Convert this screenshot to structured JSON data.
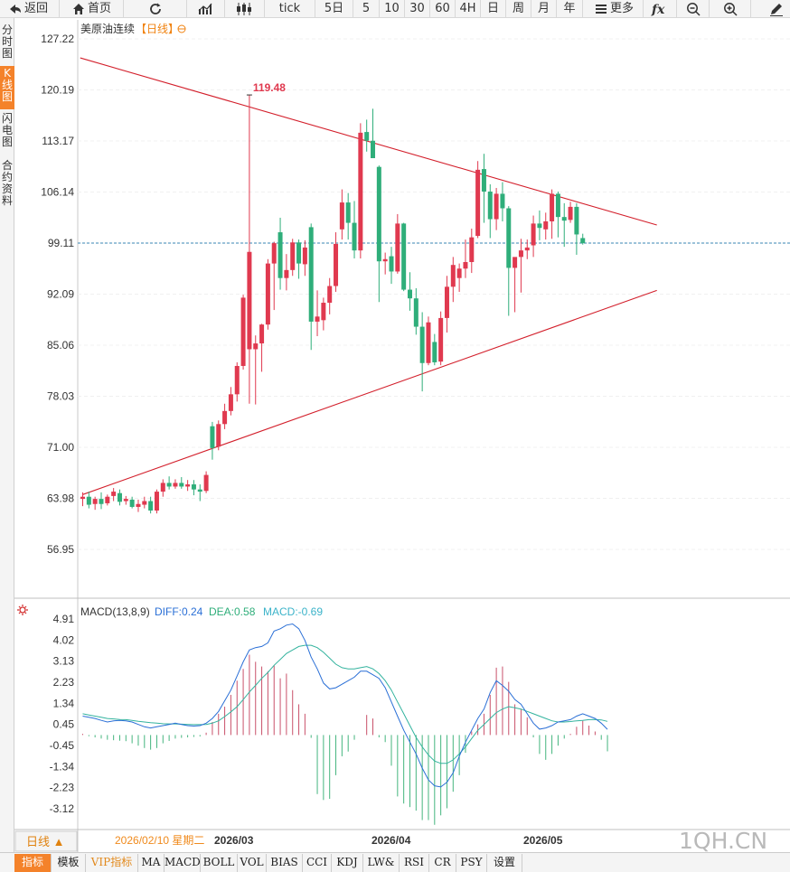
{
  "toolbar": {
    "back": "返回",
    "home": "首页",
    "tick": "tick",
    "periods": [
      "5日",
      "5",
      "10",
      "30",
      "60",
      "4H",
      "日",
      "周",
      "月",
      "年"
    ],
    "more": "更多"
  },
  "sidebar": {
    "tabs": [
      "分时图",
      "K线图",
      "闪电图",
      "合约资料"
    ],
    "active_index": 1
  },
  "header": {
    "instrument": "美原油连续",
    "period_tag": "【日线】",
    "peak_label": "119.48"
  },
  "price_axis": {
    "ticks": [
      "127.22",
      "120.19",
      "113.17",
      "106.14",
      "99.11",
      "92.09",
      "85.06",
      "78.03",
      "71.00",
      "63.98",
      "56.95"
    ]
  },
  "macd": {
    "title": "MACD(13,8,9)",
    "diff": "DIFF:0.24",
    "dea": "DEA:0.58",
    "macd": "MACD:-0.69",
    "ticks": [
      "4.91",
      "4.02",
      "3.13",
      "2.23",
      "1.34",
      "0.45",
      "-0.45",
      "-1.34",
      "-2.23",
      "-3.12"
    ]
  },
  "period_bar": {
    "period_button": "日线 ▲",
    "cursor_date": "2026/02/10 星期二",
    "months": [
      "2026/03",
      "2026/04",
      "2026/05"
    ]
  },
  "watermark": "1QH.CN",
  "indicator_tabs": [
    "指标",
    "模板",
    "VIP指标",
    "MA",
    "MACD",
    "BOLL",
    "VOL",
    "BIAS",
    "CCI",
    "KDJ",
    "LW&",
    "RSI",
    "CR",
    "PSY",
    "设置"
  ],
  "colors": {
    "up": "#e0394f",
    "down": "#2fae7a",
    "trendline": "#d31f2b",
    "diff_line": "#2a6fd6",
    "dea_line": "#33b39e",
    "accent": "#f4822a"
  },
  "chart_data": {
    "type": "candlestick",
    "ylim": [
      56.95,
      127.22
    ],
    "last_price_line": 99.11,
    "candles": [
      {
        "o": 63.9,
        "h": 64.8,
        "l": 62.9,
        "c": 64.2
      },
      {
        "o": 64.2,
        "h": 64.9,
        "l": 62.6,
        "c": 63.1
      },
      {
        "o": 63.2,
        "h": 64.2,
        "l": 62.4,
        "c": 63.9
      },
      {
        "o": 63.9,
        "h": 64.8,
        "l": 62.5,
        "c": 63.2
      },
      {
        "o": 63.3,
        "h": 64.5,
        "l": 63.0,
        "c": 64.2
      },
      {
        "o": 64.3,
        "h": 65.4,
        "l": 63.6,
        "c": 64.9
      },
      {
        "o": 64.7,
        "h": 65.2,
        "l": 63.0,
        "c": 63.5
      },
      {
        "o": 63.6,
        "h": 64.3,
        "l": 63.1,
        "c": 63.9
      },
      {
        "o": 63.8,
        "h": 64.2,
        "l": 62.6,
        "c": 62.8
      },
      {
        "o": 62.8,
        "h": 63.8,
        "l": 62.1,
        "c": 63.2
      },
      {
        "o": 63.1,
        "h": 64.2,
        "l": 62.6,
        "c": 63.6
      },
      {
        "o": 63.6,
        "h": 64.2,
        "l": 61.9,
        "c": 62.3
      },
      {
        "o": 62.3,
        "h": 65.2,
        "l": 61.9,
        "c": 64.9
      },
      {
        "o": 64.9,
        "h": 66.6,
        "l": 64.2,
        "c": 66.1
      },
      {
        "o": 66.1,
        "h": 67.0,
        "l": 65.2,
        "c": 65.6
      },
      {
        "o": 65.6,
        "h": 66.6,
        "l": 65.3,
        "c": 66.1
      },
      {
        "o": 66.1,
        "h": 66.9,
        "l": 65.3,
        "c": 65.6
      },
      {
        "o": 65.6,
        "h": 66.5,
        "l": 65.0,
        "c": 65.9
      },
      {
        "o": 65.9,
        "h": 66.5,
        "l": 64.4,
        "c": 65.2
      },
      {
        "o": 65.2,
        "h": 65.9,
        "l": 63.6,
        "c": 64.9
      },
      {
        "o": 65.0,
        "h": 67.7,
        "l": 64.7,
        "c": 67.2
      },
      {
        "o": 73.9,
        "h": 74.5,
        "l": 69.3,
        "c": 70.9
      },
      {
        "o": 71.1,
        "h": 74.7,
        "l": 70.6,
        "c": 74.2
      },
      {
        "o": 74.2,
        "h": 77.0,
        "l": 73.5,
        "c": 76.0
      },
      {
        "o": 76.0,
        "h": 79.3,
        "l": 75.4,
        "c": 78.3
      },
      {
        "o": 78.3,
        "h": 82.7,
        "l": 77.3,
        "c": 82.2
      },
      {
        "o": 82.2,
        "h": 92.0,
        "l": 81.7,
        "c": 91.6
      },
      {
        "o": 84.5,
        "h": 119.5,
        "l": 77.0,
        "c": 97.9
      },
      {
        "o": 84.5,
        "h": 86.4,
        "l": 76.9,
        "c": 85.3
      },
      {
        "o": 85.3,
        "h": 88.0,
        "l": 81.4,
        "c": 87.9
      },
      {
        "o": 87.9,
        "h": 96.9,
        "l": 87.2,
        "c": 96.3
      },
      {
        "o": 96.3,
        "h": 99.3,
        "l": 89.9,
        "c": 99.1
      },
      {
        "o": 100.6,
        "h": 102.6,
        "l": 92.7,
        "c": 94.3
      },
      {
        "o": 94.3,
        "h": 97.6,
        "l": 92.6,
        "c": 95.4
      },
      {
        "o": 95.4,
        "h": 99.7,
        "l": 94.6,
        "c": 99.2
      },
      {
        "o": 99.2,
        "h": 99.6,
        "l": 94.2,
        "c": 96.3
      },
      {
        "o": 96.2,
        "h": 99.5,
        "l": 94.6,
        "c": 98.5
      },
      {
        "o": 101.3,
        "h": 101.8,
        "l": 84.4,
        "c": 88.3
      },
      {
        "o": 88.3,
        "h": 92.6,
        "l": 86.3,
        "c": 89.0
      },
      {
        "o": 88.5,
        "h": 91.6,
        "l": 87.1,
        "c": 90.9
      },
      {
        "o": 90.9,
        "h": 94.3,
        "l": 89.3,
        "c": 93.2
      },
      {
        "o": 93.2,
        "h": 100.6,
        "l": 92.4,
        "c": 99.0
      },
      {
        "o": 101.0,
        "h": 106.5,
        "l": 99.6,
        "c": 104.7
      },
      {
        "o": 104.7,
        "h": 106.0,
        "l": 99.6,
        "c": 101.9
      },
      {
        "o": 101.9,
        "h": 104.9,
        "l": 97.0,
        "c": 98.1
      },
      {
        "o": 98.1,
        "h": 115.6,
        "l": 97.0,
        "c": 114.3
      },
      {
        "o": 114.4,
        "h": 116.1,
        "l": 111.7,
        "c": 113.2
      },
      {
        "o": 113.2,
        "h": 117.6,
        "l": 111.0,
        "c": 110.8
      },
      {
        "o": 109.6,
        "h": 109.8,
        "l": 91.0,
        "c": 96.6
      },
      {
        "o": 96.6,
        "h": 97.8,
        "l": 94.8,
        "c": 96.9
      },
      {
        "o": 97.3,
        "h": 98.6,
        "l": 93.5,
        "c": 95.2
      },
      {
        "o": 95.2,
        "h": 103.1,
        "l": 94.9,
        "c": 101.8
      },
      {
        "o": 101.8,
        "h": 101.9,
        "l": 92.5,
        "c": 92.7
      },
      {
        "o": 92.7,
        "h": 95.1,
        "l": 89.8,
        "c": 91.5
      },
      {
        "o": 91.5,
        "h": 92.9,
        "l": 86.5,
        "c": 87.6
      },
      {
        "o": 87.6,
        "h": 89.6,
        "l": 78.7,
        "c": 82.6
      },
      {
        "o": 82.6,
        "h": 89.0,
        "l": 82.3,
        "c": 88.2
      },
      {
        "o": 85.5,
        "h": 86.6,
        "l": 82.3,
        "c": 82.7
      },
      {
        "o": 82.8,
        "h": 89.7,
        "l": 82.3,
        "c": 88.8
      },
      {
        "o": 88.8,
        "h": 94.6,
        "l": 86.8,
        "c": 93.1
      },
      {
        "o": 93.1,
        "h": 97.2,
        "l": 91.0,
        "c": 96.1
      },
      {
        "o": 94.3,
        "h": 96.3,
        "l": 92.4,
        "c": 95.6
      },
      {
        "o": 95.6,
        "h": 99.6,
        "l": 94.3,
        "c": 96.5
      },
      {
        "o": 96.5,
        "h": 101.1,
        "l": 95.0,
        "c": 99.9
      },
      {
        "o": 100.1,
        "h": 110.4,
        "l": 99.8,
        "c": 109.2
      },
      {
        "o": 109.3,
        "h": 111.4,
        "l": 101.9,
        "c": 106.2
      },
      {
        "o": 106.2,
        "h": 107.2,
        "l": 99.8,
        "c": 102.4
      },
      {
        "o": 102.4,
        "h": 106.7,
        "l": 100.9,
        "c": 105.9
      },
      {
        "o": 105.9,
        "h": 107.5,
        "l": 102.1,
        "c": 103.9
      },
      {
        "o": 103.9,
        "h": 104.2,
        "l": 89.1,
        "c": 95.7
      },
      {
        "o": 95.7,
        "h": 97.1,
        "l": 89.6,
        "c": 97.2
      },
      {
        "o": 97.2,
        "h": 99.7,
        "l": 92.3,
        "c": 98.1
      },
      {
        "o": 98.1,
        "h": 99.6,
        "l": 96.9,
        "c": 98.5
      },
      {
        "o": 98.8,
        "h": 102.9,
        "l": 97.2,
        "c": 101.8
      },
      {
        "o": 101.8,
        "h": 103.6,
        "l": 99.5,
        "c": 101.2
      },
      {
        "o": 101.0,
        "h": 103.3,
        "l": 99.6,
        "c": 102.1
      },
      {
        "o": 102.1,
        "h": 106.5,
        "l": 99.7,
        "c": 105.9
      },
      {
        "o": 105.9,
        "h": 106.2,
        "l": 99.9,
        "c": 102.7
      },
      {
        "o": 102.7,
        "h": 104.6,
        "l": 98.6,
        "c": 102.2
      },
      {
        "o": 102.3,
        "h": 104.8,
        "l": 101.9,
        "c": 104.1
      },
      {
        "o": 104.1,
        "h": 104.6,
        "l": 97.5,
        "c": 100.3
      },
      {
        "o": 99.8,
        "h": 100.4,
        "l": 98.9,
        "c": 99.1
      }
    ],
    "trendlines": [
      {
        "from": {
          "i": -0.4,
          "v": 124.6
        },
        "to": {
          "i": 93.0,
          "v": 101.6
        }
      },
      {
        "from": {
          "i": 0.0,
          "v": 64.5
        },
        "to": {
          "i": 93.0,
          "v": 92.6
        }
      }
    ],
    "macd_ylim": [
      -4.0,
      5.6
    ],
    "macd_hist": [
      0.05,
      -0.05,
      -0.1,
      -0.15,
      -0.2,
      -0.22,
      -0.24,
      -0.26,
      -0.35,
      -0.45,
      -0.55,
      -0.62,
      -0.55,
      -0.35,
      -0.25,
      -0.15,
      -0.12,
      -0.1,
      -0.08,
      -0.06,
      0.1,
      0.55,
      0.9,
      1.2,
      1.7,
      2.3,
      2.8,
      3.4,
      3.1,
      2.9,
      2.7,
      2.95,
      2.4,
      2.6,
      1.9,
      1.3,
      0.9,
      -0.12,
      -2.5,
      -2.75,
      -2.7,
      -1.7,
      -0.9,
      -0.7,
      -0.2,
      0.0,
      0.85,
      0.7,
      -0.1,
      -0.3,
      -1.3,
      -2.6,
      -2.9,
      -3.05,
      -3.2,
      -3.6,
      -3.6,
      -3.8,
      -3.4,
      -3.1,
      -2.4,
      -1.7,
      -0.75,
      0.15,
      0.45,
      0.9,
      1.7,
      2.85,
      2.9,
      2.25,
      1.3,
      1.1,
      0.75,
      -0.1,
      -0.8,
      -1.05,
      -0.8,
      -0.45,
      -0.15,
      0.05,
      0.35,
      0.6,
      0.4,
      0.15,
      -0.2,
      -0.69
    ],
    "diff": [
      0.8,
      0.75,
      0.7,
      0.62,
      0.55,
      0.6,
      0.62,
      0.6,
      0.55,
      0.45,
      0.35,
      0.3,
      0.35,
      0.4,
      0.45,
      0.5,
      0.45,
      0.4,
      0.38,
      0.4,
      0.5,
      0.7,
      1.0,
      1.45,
      1.9,
      2.5,
      3.1,
      3.6,
      3.7,
      3.75,
      3.9,
      4.4,
      4.5,
      4.65,
      4.7,
      4.5,
      4.0,
      3.3,
      2.8,
      2.2,
      1.95,
      2.0,
      2.15,
      2.3,
      2.45,
      2.7,
      2.7,
      2.55,
      2.4,
      2.0,
      1.4,
      0.8,
      0.2,
      -0.3,
      -0.8,
      -1.4,
      -1.9,
      -2.15,
      -2.2,
      -2.0,
      -1.6,
      -0.9,
      -0.3,
      0.2,
      0.7,
      1.1,
      1.8,
      2.3,
      2.1,
      1.85,
      1.5,
      1.3,
      0.9,
      0.5,
      0.25,
      0.3,
      0.4,
      0.55,
      0.6,
      0.65,
      0.8,
      0.9,
      0.8,
      0.7,
      0.5,
      0.24
    ],
    "dea": [
      0.9,
      0.85,
      0.8,
      0.75,
      0.7,
      0.68,
      0.66,
      0.65,
      0.62,
      0.58,
      0.55,
      0.52,
      0.5,
      0.48,
      0.47,
      0.47,
      0.46,
      0.45,
      0.44,
      0.44,
      0.45,
      0.5,
      0.6,
      0.78,
      0.98,
      1.2,
      1.5,
      1.82,
      2.1,
      2.4,
      2.65,
      2.95,
      3.2,
      3.45,
      3.6,
      3.75,
      3.8,
      3.8,
      3.7,
      3.5,
      3.25,
      3.0,
      2.85,
      2.8,
      2.8,
      2.85,
      2.9,
      2.8,
      2.6,
      2.3,
      1.9,
      1.4,
      0.9,
      0.4,
      -0.1,
      -0.5,
      -0.85,
      -1.1,
      -1.2,
      -1.2,
      -1.05,
      -0.8,
      -0.5,
      -0.15,
      0.2,
      0.45,
      0.7,
      0.95,
      1.1,
      1.2,
      1.15,
      1.1,
      1.0,
      0.9,
      0.8,
      0.7,
      0.6,
      0.55,
      0.55,
      0.57,
      0.6,
      0.62,
      0.65,
      0.66,
      0.64,
      0.58
    ]
  }
}
